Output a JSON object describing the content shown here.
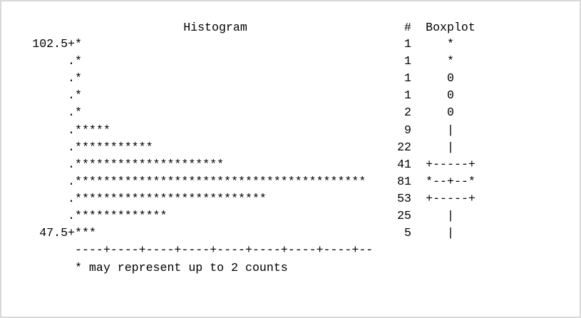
{
  "header": {
    "title": "Histogram",
    "count_heading": "#",
    "boxplot_heading": "Boxplot"
  },
  "rows": [
    {
      "label": "102.5+",
      "bar": "*",
      "count": 1,
      "boxplot": "*"
    },
    {
      "label": ".",
      "bar": "*",
      "count": 1,
      "boxplot": "*"
    },
    {
      "label": ".",
      "bar": "*",
      "count": 1,
      "boxplot": "0"
    },
    {
      "label": ".",
      "bar": "*",
      "count": 1,
      "boxplot": "0"
    },
    {
      "label": ".",
      "bar": "*",
      "count": 2,
      "boxplot": "0"
    },
    {
      "label": ".",
      "bar": "*****",
      "count": 9,
      "boxplot": "|"
    },
    {
      "label": ".",
      "bar": "***********",
      "count": 22,
      "boxplot": "|"
    },
    {
      "label": ".",
      "bar": "*********************",
      "count": 41,
      "boxplot": "+-----+"
    },
    {
      "label": ".",
      "bar": "*****************************************",
      "count": 81,
      "boxplot": "*--+--*"
    },
    {
      "label": ".",
      "bar": "***************************",
      "count": 53,
      "boxplot": "+-----+"
    },
    {
      "label": ".",
      "bar": "*************",
      "count": 25,
      "boxplot": "|"
    },
    {
      "label": "47.5+",
      "bar": "***",
      "count": 5,
      "boxplot": "|"
    }
  ],
  "axis": "----+----+----+----+----+----+----+----+--",
  "footnote": "* may represent up to 2 counts"
}
